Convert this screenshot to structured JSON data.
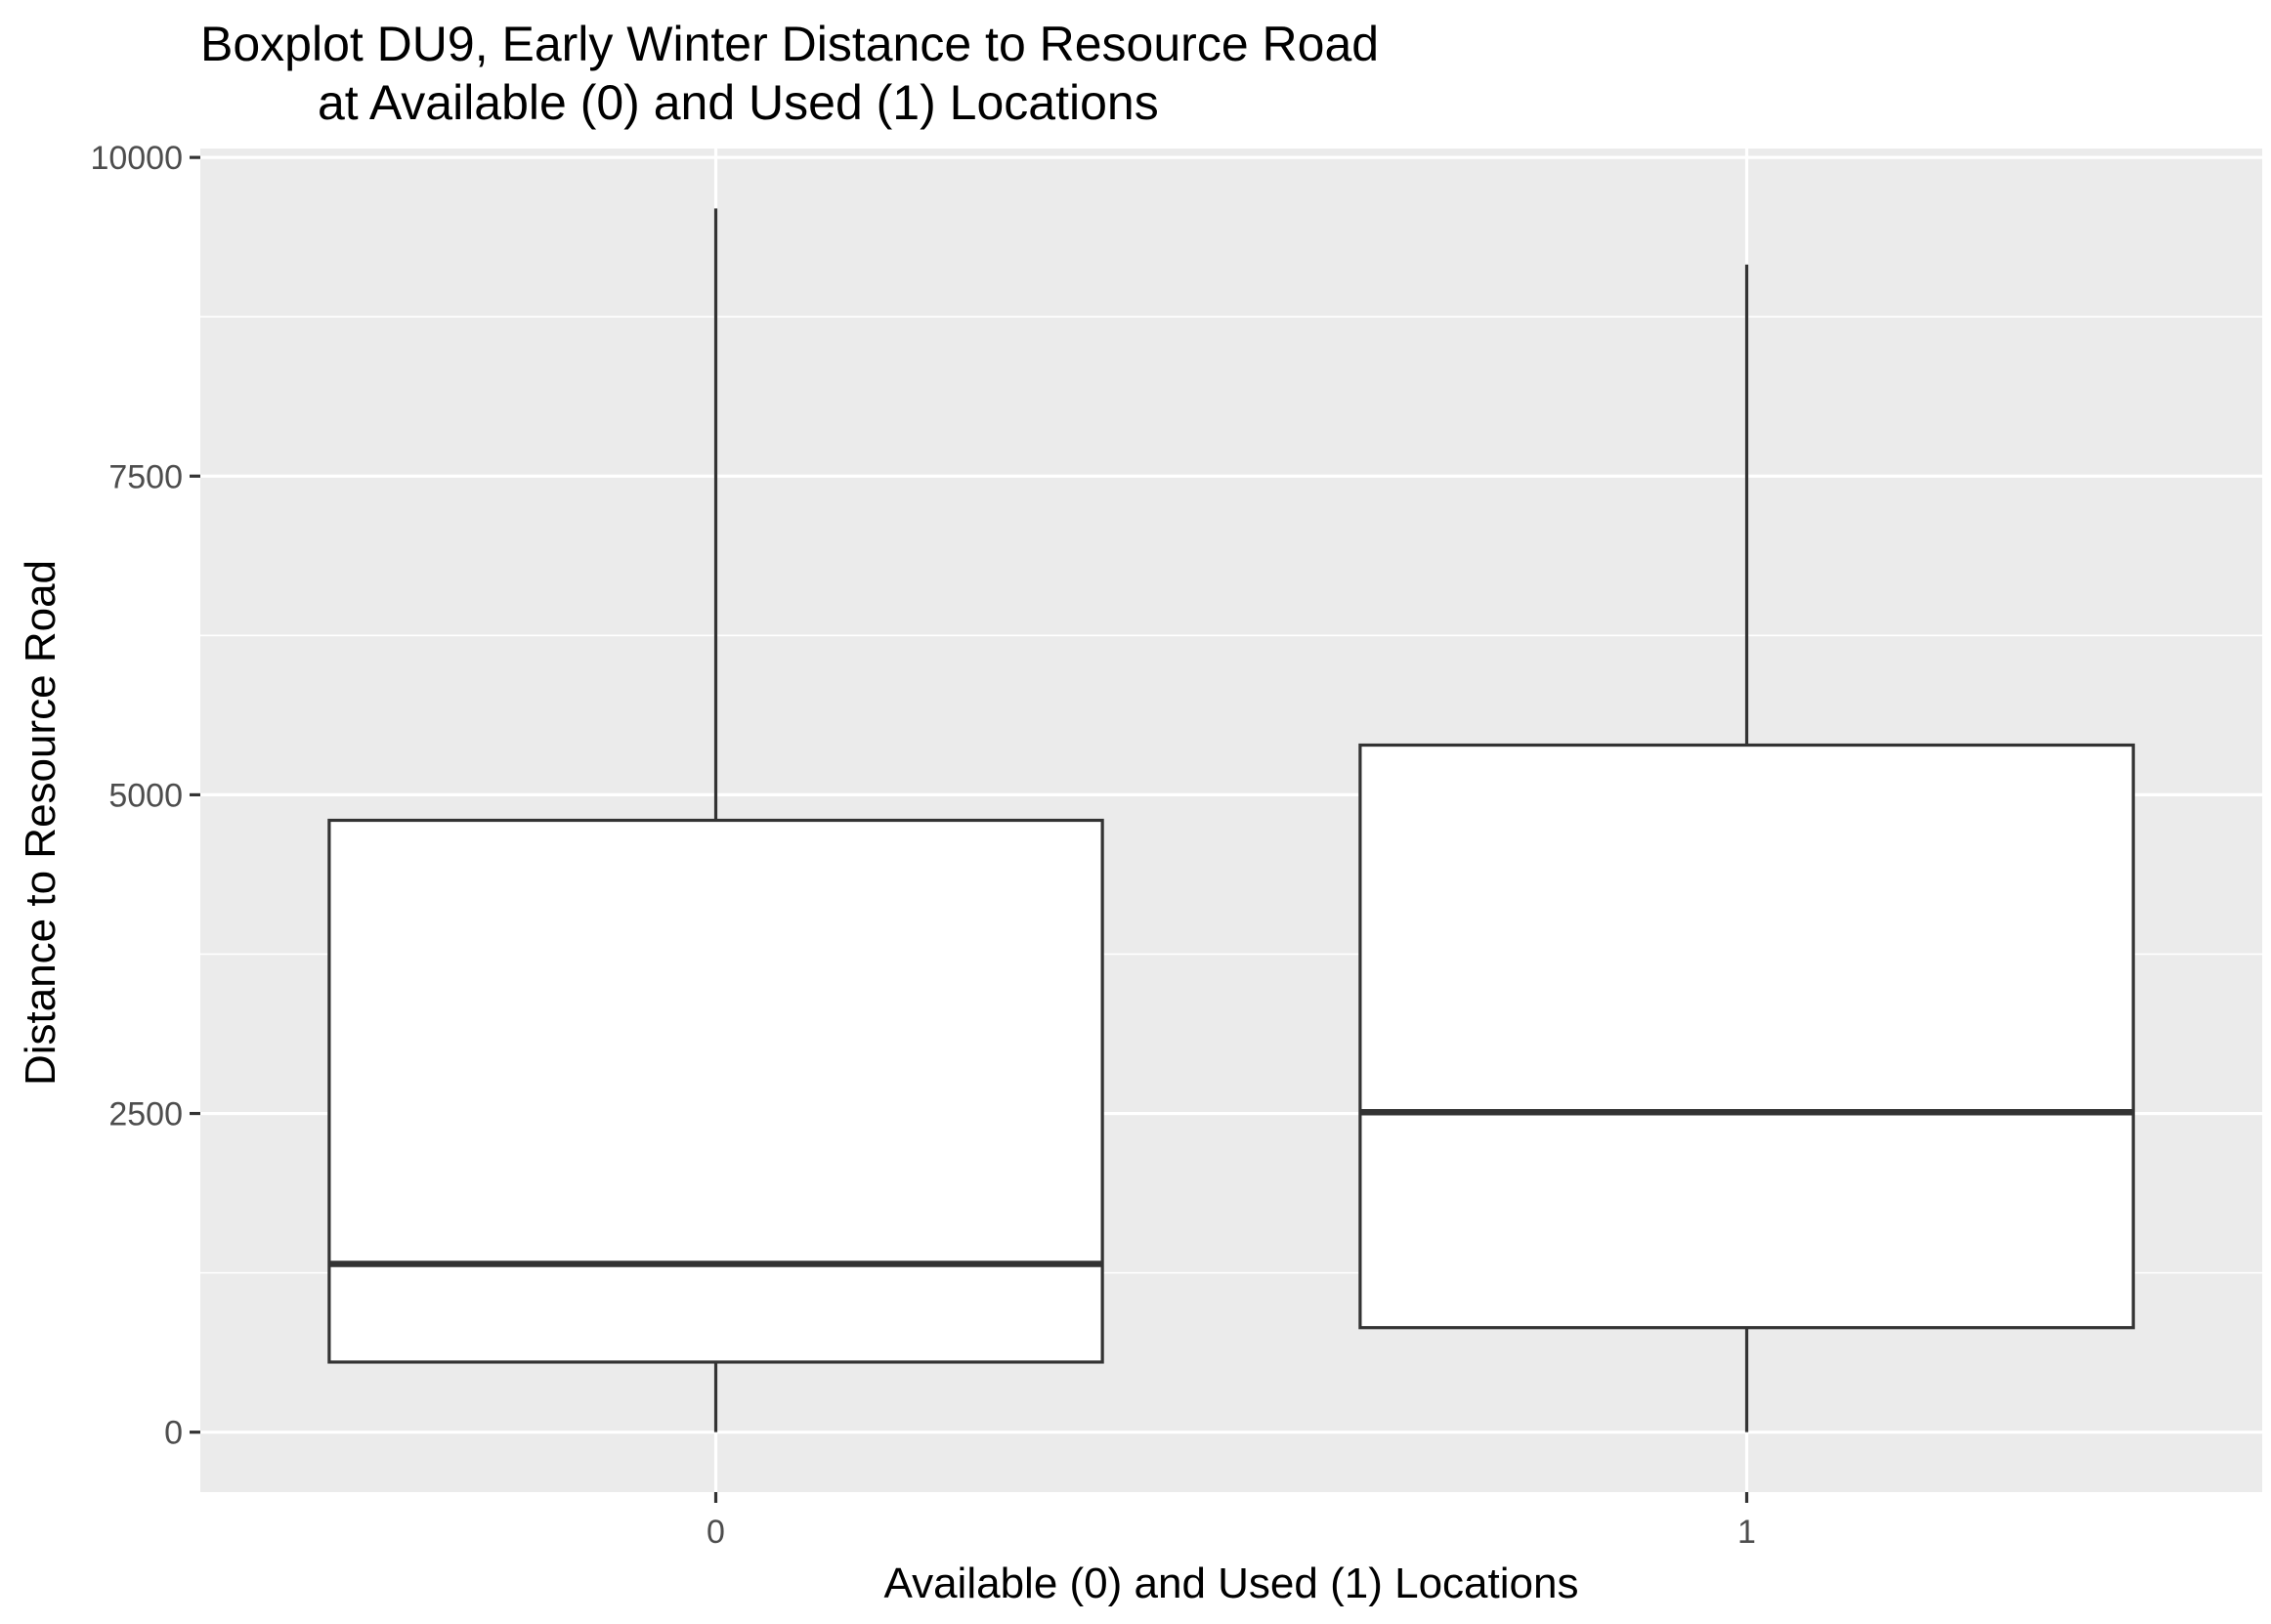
{
  "chart_data": {
    "type": "boxplot",
    "title": "Boxplot DU9, Early Winter Distance to Resource Road",
    "subtitle": "at Available (0) and Used (1) Locations",
    "xlabel": "Available (0) and Used (1) Locations",
    "ylabel": "Distance to Resource Road",
    "categories": [
      "0",
      "1"
    ],
    "y_ticks": [
      "0",
      "2500",
      "5000",
      "7500",
      "10000"
    ],
    "y_tick_values": [
      0,
      2500,
      5000,
      7500,
      10000
    ],
    "ylim": [
      -470,
      10070
    ],
    "boxes": [
      {
        "category": "0",
        "min": 0,
        "q1": 550,
        "median": 1320,
        "q3": 4800,
        "max": 9600
      },
      {
        "category": "1",
        "min": 0,
        "q1": 820,
        "median": 2510,
        "q3": 5390,
        "max": 9160
      }
    ],
    "grid": true,
    "legend": "none",
    "colors": {
      "panel_background": "#ebebeb",
      "grid_major": "#ffffff",
      "box_fill": "#ffffff",
      "box_line": "#333333"
    }
  }
}
